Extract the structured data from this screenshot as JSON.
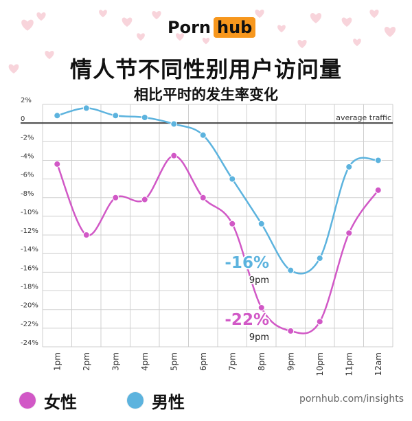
{
  "brand": {
    "word": "Porn",
    "badge": "hub",
    "badge_color": "#f7971d"
  },
  "title": "情人节不同性别用户访问量",
  "subtitle": "相比平时的发生率变化",
  "source": "pornhub.com/insights",
  "colors": {
    "female": "#d158c6",
    "male": "#5cb3de",
    "grid": "#cfcfcf",
    "baseline": "#444444"
  },
  "chart_data": {
    "type": "line",
    "categories": [
      "1pm",
      "2pm",
      "3pm",
      "4pm",
      "5pm",
      "6pm",
      "7pm",
      "8pm",
      "9pm",
      "10pm",
      "11pm",
      "12am"
    ],
    "series": [
      {
        "name": "女性",
        "color": "#d158c6",
        "values": [
          -4.4,
          -12.0,
          -8.0,
          -8.2,
          -3.5,
          -8.0,
          -10.8,
          -19.8,
          -22.3,
          -21.3,
          -11.8,
          -7.2
        ]
      },
      {
        "name": "男性",
        "color": "#5cb3de",
        "values": [
          0.8,
          1.6,
          0.8,
          0.6,
          -0.1,
          -1.3,
          -6.0,
          -10.8,
          -15.8,
          -14.5,
          -4.7,
          -4.0
        ]
      }
    ],
    "ylim": [
      -24,
      2
    ],
    "yticks": [
      "2%",
      "0",
      "-2%",
      "-4%",
      "-6%",
      "-8%",
      "-10%",
      "-12%",
      "-14%",
      "-16%",
      "-18%",
      "-20%",
      "-22%",
      "-24%"
    ],
    "ytick_values": [
      2,
      0,
      -2,
      -4,
      -6,
      -8,
      -10,
      -12,
      -14,
      -16,
      -18,
      -20,
      -22,
      -24
    ],
    "baseline_label": "average traffic",
    "annotations": [
      {
        "value_text": "-16%",
        "time_text": "9pm",
        "series": "男性"
      },
      {
        "value_text": "-22%",
        "time_text": "9pm",
        "series": "女性"
      }
    ],
    "grid": true,
    "legend": "bottom-left"
  }
}
